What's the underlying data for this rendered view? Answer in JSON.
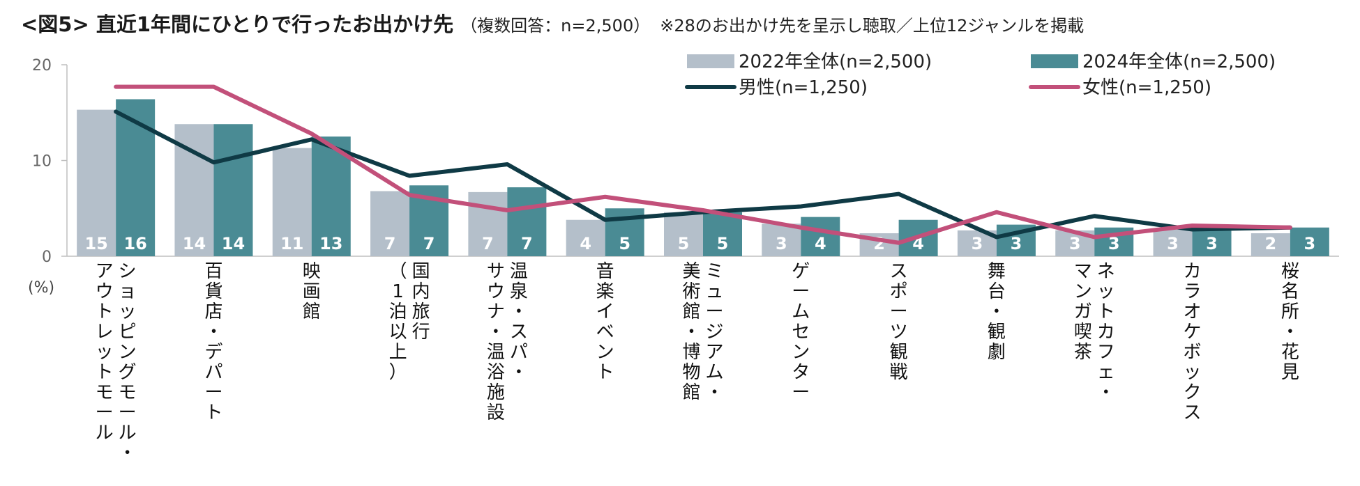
{
  "header": {
    "title": "<図5> 直近1年間にひとりで行ったお出かけ先",
    "subtitle": "（複数回答：n=2,500）",
    "note": "※28のお出かけ先を呈示し聴取／上位12ジャンルを掲載"
  },
  "chart_data": {
    "type": "bar",
    "title": "<図5> 直近1年間にひとりで行ったお出かけ先",
    "ylabel": "(%)",
    "ylim": [
      0,
      20
    ],
    "yticks": [
      "0",
      "10",
      "20"
    ],
    "unit_label": "(%)",
    "categories": [
      [
        "ショッピングモール・",
        "アウトレットモール"
      ],
      [
        "百貨店・デパート"
      ],
      [
        "映画館"
      ],
      [
        "国内旅行",
        "（1泊以上）"
      ],
      [
        "温泉・スパ・",
        "サウナ・温浴施設"
      ],
      [
        "音楽イベント"
      ],
      [
        "ミュージアム・",
        "美術館・博物館"
      ],
      [
        "ゲームセンター"
      ],
      [
        "スポーツ観戦"
      ],
      [
        "舞台・観劇"
      ],
      [
        "ネットカフェ・",
        "マンガ喫茶"
      ],
      [
        "カラオケボックス"
      ],
      [
        "桜名所・花見"
      ]
    ],
    "series": [
      {
        "name": "2022年全体(n=2,500)",
        "kind": "bar",
        "color": "#b4bfca",
        "values": [
          15.3,
          13.8,
          11.3,
          6.8,
          6.7,
          3.8,
          4.6,
          3.4,
          2.4,
          2.7,
          2.7,
          2.8,
          2.4
        ],
        "labels": [
          "15",
          "14",
          "11",
          "7",
          "7",
          "4",
          "5",
          "3",
          "2",
          "3",
          "3",
          "3",
          "2"
        ]
      },
      {
        "name": "2024年全体(n=2,500)",
        "kind": "bar",
        "color": "#4a8b94",
        "values": [
          16.4,
          13.8,
          12.5,
          7.4,
          7.2,
          5.0,
          4.6,
          4.1,
          3.8,
          3.3,
          3.0,
          3.0,
          3.0
        ],
        "labels": [
          "16",
          "14",
          "13",
          "7",
          "7",
          "5",
          "5",
          "4",
          "4",
          "3",
          "3",
          "3",
          "3"
        ]
      },
      {
        "name": "男性(n=1,250)",
        "kind": "line",
        "color": "#0f3a45",
        "values": [
          15.1,
          9.8,
          12.2,
          8.4,
          9.6,
          3.8,
          4.6,
          5.2,
          6.5,
          2.0,
          4.2,
          2.8,
          3.0
        ]
      },
      {
        "name": "女性(n=1,250)",
        "kind": "line",
        "color": "#c2507a",
        "values": [
          17.7,
          17.7,
          12.8,
          6.4,
          4.8,
          6.2,
          4.8,
          3.0,
          1.4,
          4.6,
          2.0,
          3.2,
          3.0
        ]
      }
    ],
    "legend_position": "top-right",
    "grid": false
  }
}
